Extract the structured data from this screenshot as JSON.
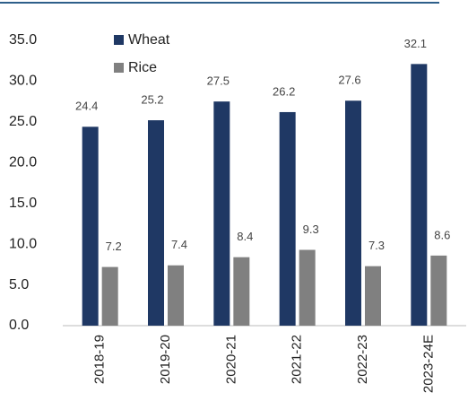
{
  "chart_data": {
    "type": "bar",
    "categories": [
      "2018-19",
      "2019-20",
      "2020-21",
      "2021-22",
      "2022-23",
      "2023-24E"
    ],
    "series": [
      {
        "name": "Wheat",
        "color": "#1f3864",
        "values": [
          24.4,
          25.2,
          27.5,
          26.2,
          27.6,
          32.1
        ]
      },
      {
        "name": "Rice",
        "color": "#808080",
        "values": [
          7.2,
          7.4,
          8.4,
          9.3,
          7.3,
          8.6
        ]
      }
    ],
    "ylim": [
      0,
      35
    ],
    "yticks": [
      {
        "value": 0,
        "label": "0.0"
      },
      {
        "value": 5,
        "label": "5.0"
      },
      {
        "value": 10,
        "label": "10.0"
      },
      {
        "value": 15,
        "label": "15.0"
      },
      {
        "value": 20,
        "label": "20.0"
      },
      {
        "value": 25,
        "label": "25.0"
      },
      {
        "value": 30,
        "label": "30.0"
      },
      {
        "value": 35,
        "label": "35.0"
      }
    ],
    "legend": "top-left",
    "grid": false
  }
}
